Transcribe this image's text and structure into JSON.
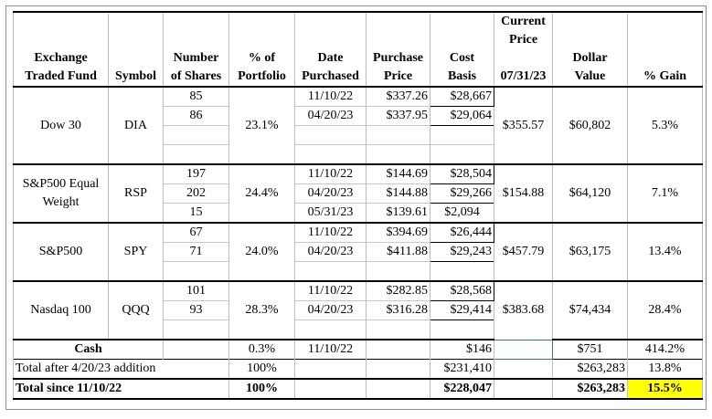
{
  "headers": {
    "fund": [
      "Exchange",
      "Traded Fund"
    ],
    "symbol": "Symbol",
    "shares": [
      "Number",
      "of Shares"
    ],
    "pct_portfolio": [
      "% of",
      "Portfolio"
    ],
    "date": [
      "Date",
      "Purchased"
    ],
    "purchase_price": [
      "Purchase",
      "Price"
    ],
    "cost_basis": [
      "Cost",
      "Basis"
    ],
    "current_price": [
      "Current",
      "Price",
      "07/31/23"
    ],
    "dollar_value": [
      "Dollar",
      "Value"
    ],
    "gain": "% Gain"
  },
  "funds": [
    {
      "name": "Dow 30",
      "symbol": "DIA",
      "pct": "23.1%",
      "lots": [
        {
          "shares": "85",
          "date": "11/10/22",
          "price": "$337.26",
          "basis": "$28,667"
        },
        {
          "shares": "86",
          "date": "04/20/23",
          "price": "$337.95",
          "basis": "$29,064"
        }
      ],
      "current": "$355.57",
      "value": "$60,802",
      "gain": "5.3%"
    },
    {
      "name": "S&P500 Equal Weight",
      "name_lines": [
        "S&P500 Equal",
        "Weight"
      ],
      "symbol": "RSP",
      "pct": "24.4%",
      "lots": [
        {
          "shares": "197",
          "date": "11/10/22",
          "price": "$144.69",
          "basis": "$28,504"
        },
        {
          "shares": "202",
          "date": "04/20/23",
          "price": "$144.88",
          "basis": "$29,266"
        },
        {
          "shares": "15",
          "date": "05/31/23",
          "price": "$139.61",
          "basis": "$2,094"
        }
      ],
      "current": "$154.88",
      "value": "$64,120",
      "gain": "7.1%"
    },
    {
      "name": "S&P500",
      "symbol": "SPY",
      "pct": "24.0%",
      "lots": [
        {
          "shares": "67",
          "date": "11/10/22",
          "price": "$394.69",
          "basis": "$26,444"
        },
        {
          "shares": "71",
          "date": "04/20/23",
          "price": "$411.88",
          "basis": "$29,243"
        }
      ],
      "current": "$457.79",
      "value": "$63,175",
      "gain": "13.4%"
    },
    {
      "name": "Nasdaq 100",
      "symbol": "QQQ",
      "pct": "28.3%",
      "lots": [
        {
          "shares": "101",
          "date": "11/10/22",
          "price": "$282.85",
          "basis": "$28,568"
        },
        {
          "shares": "93",
          "date": "04/20/23",
          "price": "$316.28",
          "basis": "$29,414"
        }
      ],
      "current": "$383.68",
      "value": "$74,434",
      "gain": "28.4%"
    }
  ],
  "cash": {
    "label": "Cash",
    "pct": "0.3%",
    "date": "11/10/22",
    "basis": "$146",
    "value": "$751",
    "gain": "414.2%"
  },
  "total_after": {
    "label": "Total after  4/20/23 addition",
    "pct": "100%",
    "basis": "$231,410",
    "value": "$263,283",
    "gain": "13.8%"
  },
  "total_since": {
    "label": "Total since 11/10/22",
    "pct": "100%",
    "basis": "$228,047",
    "value": "$263,283",
    "gain": "15.5%"
  },
  "colors": {
    "highlight": "#ffff00",
    "selected_cell_border": "#3a7d44"
  }
}
